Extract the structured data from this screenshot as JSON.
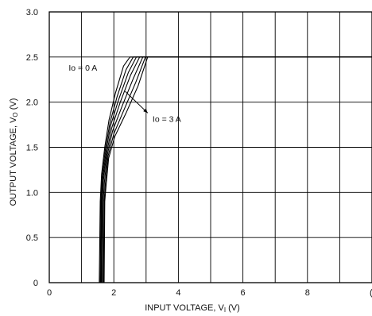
{
  "chart_data": {
    "type": "line",
    "title": "",
    "xlabel": "INPUT VOLTAGE, V",
    "xlabel_sub": "I",
    "xlabel_unit": " (V)",
    "ylabel": "OUTPUT VOLTAGE, V",
    "ylabel_sub": "O",
    "ylabel_unit": " (V)",
    "xlim": [
      0,
      10
    ],
    "ylim": [
      0,
      3.0
    ],
    "x_ticks": [
      0,
      2,
      4,
      6,
      8
    ],
    "x_tick_labels": [
      "0",
      "2",
      "4",
      "6",
      "8"
    ],
    "x_tick_partial": "(",
    "y_ticks": [
      0,
      0.5,
      1.0,
      1.5,
      2.0,
      2.5,
      3.0
    ],
    "y_tick_labels": [
      "0",
      "0.5",
      "1.0",
      "1.5",
      "2.0",
      "2.5",
      "3.0"
    ],
    "grid": true,
    "legend": "none",
    "series": [
      {
        "x": [
          0,
          1.55,
          1.58,
          1.62,
          1.72,
          1.85,
          2.05,
          2.3,
          2.5,
          10
        ],
        "y": [
          0,
          0,
          0.9,
          1.2,
          1.5,
          1.8,
          2.1,
          2.4,
          2.5,
          2.5
        ]
      },
      {
        "x": [
          0,
          1.58,
          1.6,
          1.64,
          1.74,
          1.88,
          2.1,
          2.38,
          2.6,
          10
        ],
        "y": [
          0,
          0,
          0.9,
          1.18,
          1.48,
          1.77,
          2.06,
          2.36,
          2.5,
          2.5
        ]
      },
      {
        "x": [
          0,
          1.6,
          1.62,
          1.66,
          1.76,
          1.9,
          2.15,
          2.45,
          2.7,
          10
        ],
        "y": [
          0,
          0,
          0.9,
          1.16,
          1.46,
          1.74,
          2.03,
          2.33,
          2.5,
          2.5
        ]
      },
      {
        "x": [
          0,
          1.62,
          1.64,
          1.68,
          1.78,
          1.93,
          2.2,
          2.52,
          2.8,
          10
        ],
        "y": [
          0,
          0,
          0.9,
          1.14,
          1.44,
          1.71,
          2.0,
          2.3,
          2.5,
          2.5
        ]
      },
      {
        "x": [
          0,
          1.65,
          1.67,
          1.71,
          1.8,
          1.96,
          2.26,
          2.6,
          2.9,
          10
        ],
        "y": [
          0,
          0,
          0.9,
          1.12,
          1.42,
          1.68,
          1.96,
          2.26,
          2.5,
          2.5
        ]
      },
      {
        "x": [
          0,
          1.68,
          1.7,
          1.74,
          1.82,
          2.0,
          2.32,
          2.68,
          2.98,
          10
        ],
        "y": [
          0,
          0,
          0.9,
          1.1,
          1.4,
          1.65,
          1.92,
          2.22,
          2.5,
          2.5
        ]
      },
      {
        "x": [
          0,
          1.7,
          1.72,
          1.76,
          1.84,
          2.03,
          2.38,
          2.75,
          3.05,
          10
        ],
        "y": [
          0,
          0,
          0.9,
          1.08,
          1.38,
          1.62,
          1.88,
          2.18,
          2.5,
          2.5
        ]
      }
    ],
    "annotations": [
      {
        "text": "Io = 0 A",
        "x": 0.6,
        "y": 2.35
      },
      {
        "text": "Io = 3 A",
        "x": 3.2,
        "y": 1.78
      }
    ],
    "annotation_arrow": {
      "x1": 2.35,
      "y1": 2.12,
      "x2": 3.05,
      "y2": 1.88
    }
  }
}
